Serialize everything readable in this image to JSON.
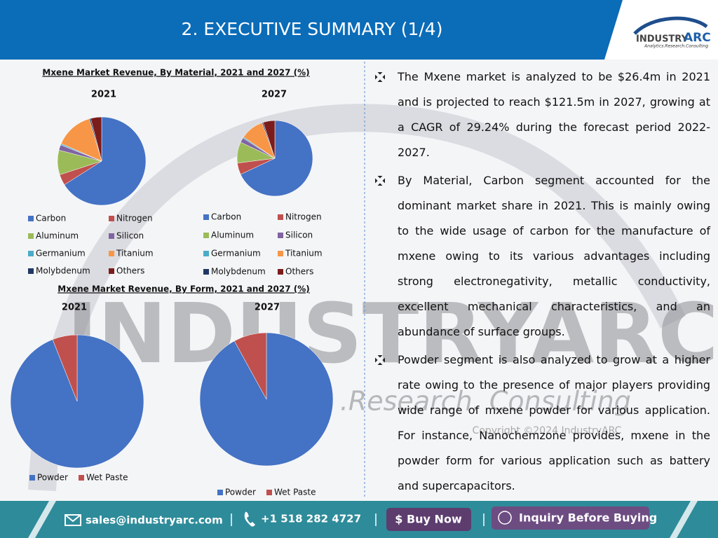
{
  "header": {
    "title": "2. EXECUTIVE SUMMARY (1/4)"
  },
  "logo": {
    "brand1": "INDUSTRY",
    "brand2": "ARC",
    "tagline": "Analytics.Research.Consulting"
  },
  "watermark": {
    "name": "INDUSTRYARC",
    "tagline": "Analytics .Research. Consulting",
    "copyright": "Copyright ©2024 IndustryARC"
  },
  "material_title": "Mxene Market Revenue, By Material, 2021 and 2027 (%)",
  "form_title": "Mxene Market Revenue, By Form, 2021 and 2027 (%)",
  "chart_data": [
    {
      "type": "pie",
      "title": "2021",
      "categories": [
        "Carbon",
        "Nitrogen",
        "Aluminum",
        "Silicon",
        "Germanium",
        "Titanium",
        "Molybdenum",
        "Others"
      ],
      "values": [
        66,
        4,
        9,
        2,
        0.5,
        14,
        0.5,
        4
      ],
      "colors": [
        "#4472c4",
        "#c0504d",
        "#9bbb59",
        "#8064a2",
        "#4bacc6",
        "#f79646",
        "#1f3864",
        "#7b1c1c"
      ]
    },
    {
      "type": "pie",
      "title": "2027",
      "categories": [
        "Carbon",
        "Nitrogen",
        "Aluminum",
        "Silicon",
        "Germanium",
        "Titanium",
        "Molybdenum",
        "Others"
      ],
      "values": [
        68,
        5,
        9,
        2,
        0.5,
        10,
        0.5,
        5
      ],
      "colors": [
        "#4472c4",
        "#c0504d",
        "#9bbb59",
        "#8064a2",
        "#4bacc6",
        "#f79646",
        "#1f3864",
        "#7b1c1c"
      ]
    },
    {
      "type": "pie",
      "title": "2021",
      "categories": [
        "Powder",
        "Wet Paste"
      ],
      "values": [
        94,
        6
      ],
      "colors": [
        "#4472c4",
        "#c0504d"
      ]
    },
    {
      "type": "pie",
      "title": "2027",
      "categories": [
        "Powder",
        "Wet Paste"
      ],
      "values": [
        92,
        8
      ],
      "colors": [
        "#4472c4",
        "#c0504d"
      ]
    }
  ],
  "bullets": [
    "The Mxene market is analyzed to be $26.4m in 2021 and is projected to reach $121.5m in 2027, growing at a CAGR of 29.24% during the forecast period 2022-2027.",
    "By Material, Carbon segment accounted for the dominant market share in 2021. This is mainly owing to the wide usage of carbon for the manufacture of mxene owing to its various advantages including strong electronegativity, metallic conductivity, excellent mechanical characteristics, and an abundance of surface groups.",
    "Powder segment is also analyzed to grow at a higher rate owing to the presence of major players providing wide range of mxene powder for various application. For instance, Nanochemzone provides, mxene in the powder form for various application such as battery and supercapacitors."
  ],
  "footer": {
    "email": "sales@industryarc.com",
    "phone": "+1 518 282 4727",
    "buy": "$ Buy Now",
    "inquiry": "Inquiry Before Buying"
  }
}
